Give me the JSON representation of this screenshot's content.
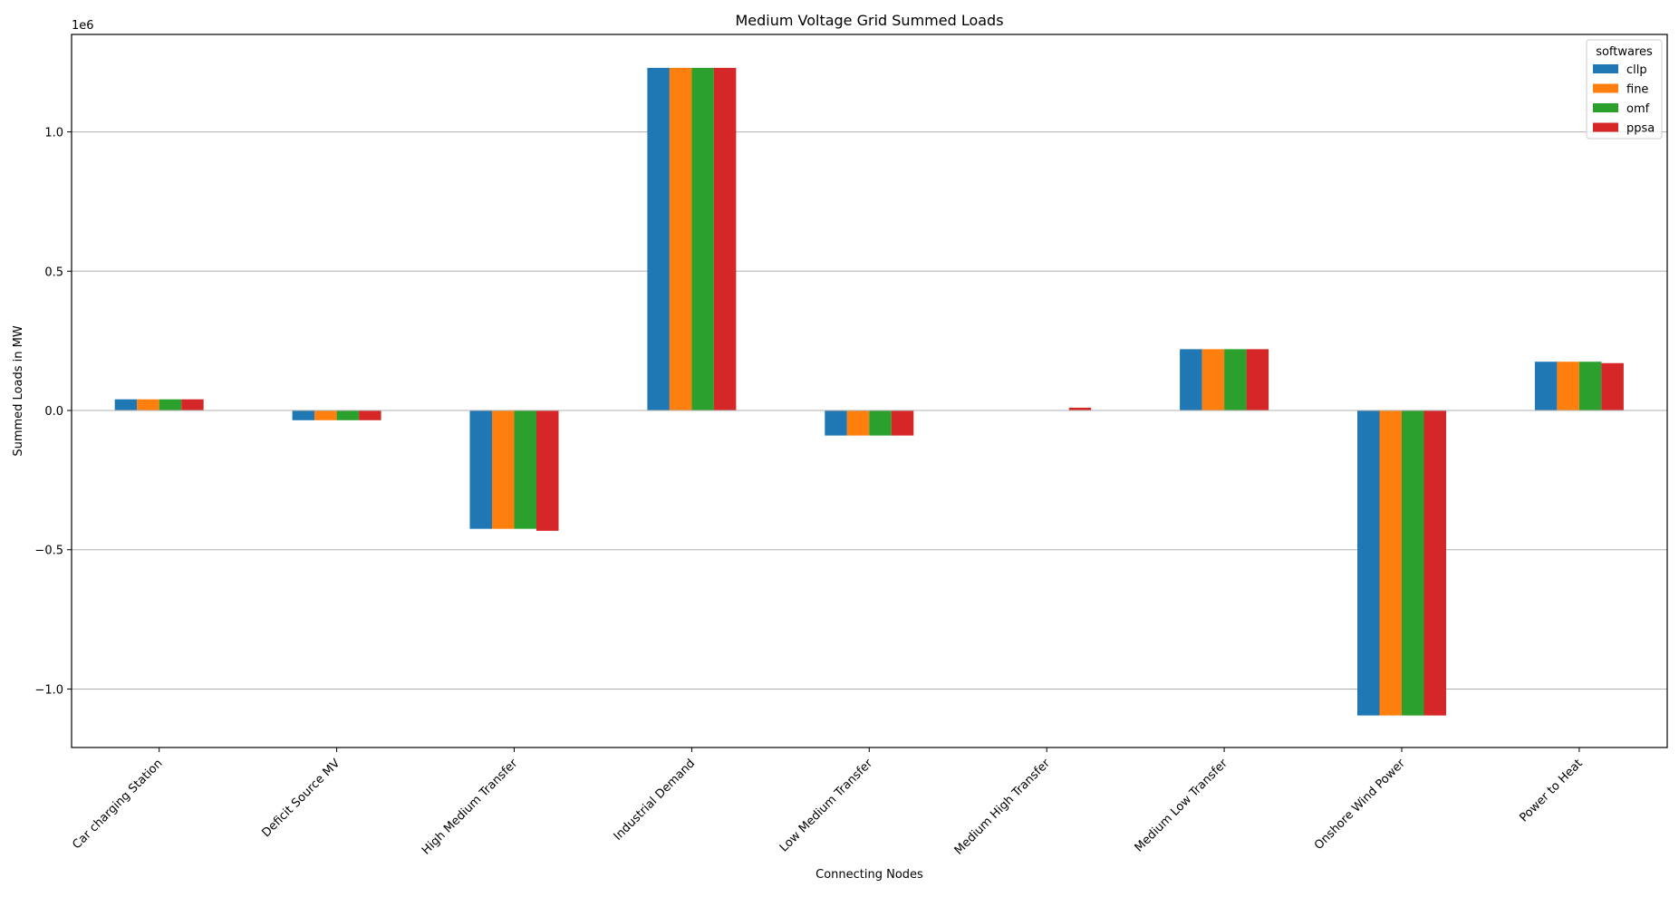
{
  "chart_data": {
    "type": "bar",
    "title": "Medium Voltage Grid Summed Loads",
    "xlabel": "Connecting Nodes",
    "ylabel": "Summed Loads in MW",
    "y_offset_label": "1e6",
    "ylim": [
      -1.21,
      1.35
    ],
    "yticks": [
      -1.0,
      -0.5,
      0.0,
      0.5,
      1.0
    ],
    "ytick_labels": [
      "−1.0",
      "−0.5",
      "0.0",
      "0.5",
      "1.0"
    ],
    "grid": "horizontal",
    "legend": {
      "title": "softwares",
      "placement": "top-right"
    },
    "categories": [
      "Car charging Station",
      "Deficit Source MV",
      "High Medium Transfer",
      "Industrial Demand",
      "Low Medium Transfer",
      "Medium High Transfer",
      "Medium Low Transfer",
      "Onshore Wind Power",
      "Power to Heat"
    ],
    "series": [
      {
        "name": "cllp",
        "color": "#1f77b4",
        "values": [
          0.04,
          -0.035,
          -0.425,
          1.23,
          -0.09,
          0.0,
          0.22,
          -1.095,
          0.175
        ]
      },
      {
        "name": "fine",
        "color": "#ff7f0e",
        "values": [
          0.04,
          -0.035,
          -0.425,
          1.23,
          -0.09,
          0.0,
          0.22,
          -1.095,
          0.175
        ]
      },
      {
        "name": "omf",
        "color": "#2ca02c",
        "values": [
          0.04,
          -0.035,
          -0.425,
          1.23,
          -0.09,
          0.0,
          0.22,
          -1.095,
          0.175
        ]
      },
      {
        "name": "ppsa",
        "color": "#d62728",
        "values": [
          0.04,
          -0.035,
          -0.432,
          1.23,
          -0.09,
          0.01,
          0.22,
          -1.095,
          0.17
        ]
      }
    ]
  }
}
